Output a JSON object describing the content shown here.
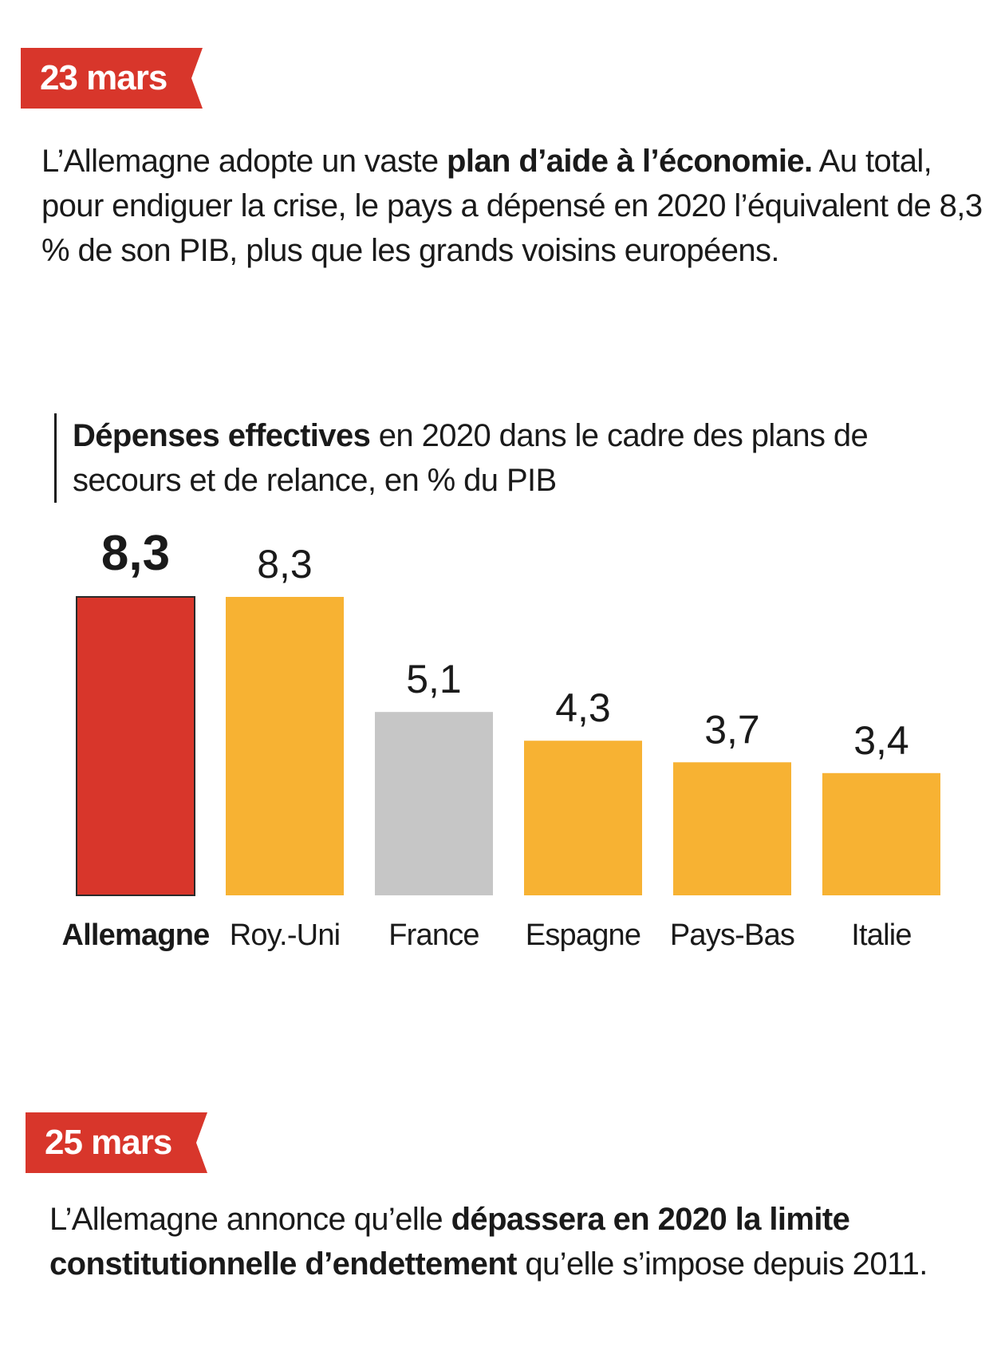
{
  "events": [
    {
      "date": "23 mars",
      "text_before": "L’Allemagne adopte un vaste ",
      "text_bold": "plan d’aide à l’économie.",
      "text_after": " Au total, pour endiguer la crise, le pays a dépensé en 2020 l’équivalent de 8,3 % de son PIB, plus que les grands voisins européens."
    },
    {
      "date": "25 mars",
      "text_before": "L’Allemagne annonce qu’elle ",
      "text_bold": "dépassera en 2020 la limite constitutionnelle d’endettement",
      "text_after": " qu’elle s’impose depuis 2011."
    }
  ],
  "colors": {
    "tag_red": "#d8362b",
    "highlight_red": "#d8362b",
    "orange": "#f7b233",
    "grey": "#c6c6c6"
  },
  "chart_data": {
    "type": "bar",
    "title_bold": "Dépenses effectives",
    "title_rest": " en 2020 dans le cadre des plans de secours et de relance, en % du PIB",
    "categories": [
      "Allemagne",
      "Roy.-Uni",
      "France",
      "Espagne",
      "Pays-Bas",
      "Italie"
    ],
    "values": [
      8.3,
      8.3,
      5.1,
      4.3,
      3.7,
      3.4
    ],
    "value_labels": [
      "8,3",
      "8,3",
      "5,1",
      "4,3",
      "3,7",
      "3,4"
    ],
    "bar_colors": [
      "#d8362b",
      "#f7b233",
      "#c6c6c6",
      "#f7b233",
      "#f7b233",
      "#f7b233"
    ],
    "highlight_index": 0,
    "ylim": [
      0,
      8.3
    ],
    "grid": false,
    "legend": "none"
  }
}
